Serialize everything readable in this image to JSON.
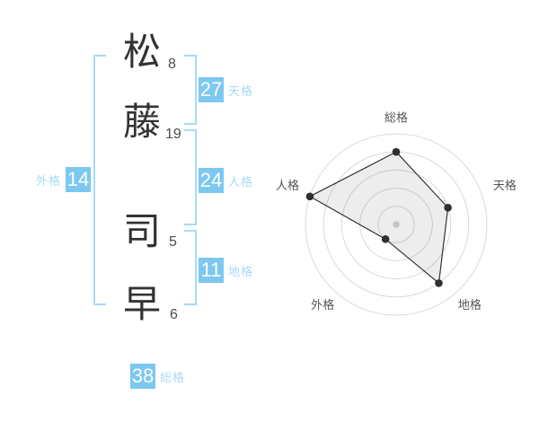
{
  "page": {
    "background": "#ffffff"
  },
  "name": {
    "surname": [
      {
        "char": "松",
        "strokes": "8"
      },
      {
        "char": "藤",
        "strokes": "19"
      }
    ],
    "given": [
      {
        "char": "司",
        "strokes": "5"
      },
      {
        "char": "早",
        "strokes": "6"
      }
    ]
  },
  "kaku": {
    "tenkaku": {
      "label": "天格",
      "value": "27"
    },
    "jinkaku": {
      "label": "人格",
      "value": "24"
    },
    "chikaku": {
      "label": "地格",
      "value": "11"
    },
    "gaikaku": {
      "label": "外格",
      "value": "14"
    },
    "soukaku": {
      "label": "総格",
      "value": "38"
    }
  },
  "colors": {
    "accent_blue": "#7cc8f0",
    "light_blue": "#a6dbf6",
    "kanji_color": "#333333",
    "stroke_color": "#4d4d4d"
  },
  "chart_data": {
    "type": "radar",
    "categories": [
      "総格",
      "天格",
      "地格",
      "外格",
      "人格"
    ],
    "values": [
      4,
      3,
      4,
      1,
      5
    ],
    "max": 5,
    "rings": 5,
    "start_angle_deg": -90,
    "direction": "clockwise",
    "grid": "concentric-circles",
    "legend": false,
    "style": {
      "ring_color": "#dadada",
      "line_color": "#333333",
      "fill_color": "rgba(0,0,0,0.07)",
      "point_color": "#2f2f2f",
      "center_dot_color": "#c4c4c4",
      "label_color": "#555555"
    }
  }
}
